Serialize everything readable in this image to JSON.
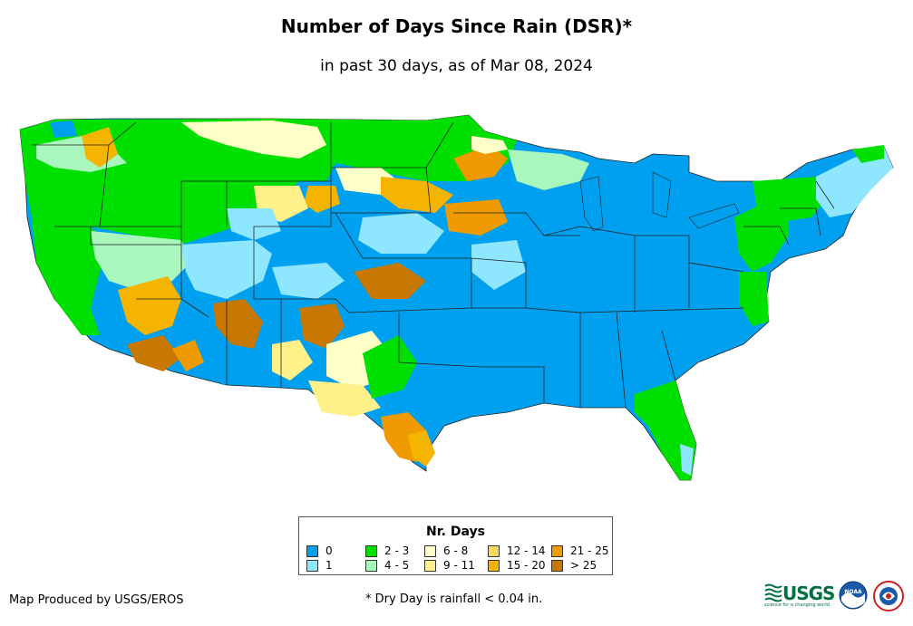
{
  "title": "Number of Days Since Rain (DSR)*",
  "subtitle": "in past 30 days, as of Mar 08, 2024",
  "legend": {
    "title": "Nr. Days",
    "items": [
      {
        "label": "0",
        "color": "#00a0f0"
      },
      {
        "label": "1",
        "color": "#8ee6ff"
      },
      {
        "label": "2 - 3",
        "color": "#00e000"
      },
      {
        "label": "4 - 5",
        "color": "#aaf7be"
      },
      {
        "label": "6 - 8",
        "color": "#ffffc8"
      },
      {
        "label": "9 - 11",
        "color": "#fff08a"
      },
      {
        "label": "12 - 14",
        "color": "#f7d85a"
      },
      {
        "label": "15 - 20",
        "color": "#f4b400"
      },
      {
        "label": "21 - 25",
        "color": "#ee9a00"
      },
      {
        "label": "> 25",
        "color": "#c87800"
      }
    ]
  },
  "footer": {
    "producer": "Map Produced by USGS/EROS",
    "note": "* Dry Day is rainfall < 0.04 in."
  },
  "logos": {
    "usgs": "USGS",
    "usgs_tagline": "science for a changing world",
    "noaa": "NOAA"
  },
  "colors": {
    "state_border": "#222222",
    "usgs_green": "#006f41",
    "noaa_blue": "#1a5aa6"
  }
}
